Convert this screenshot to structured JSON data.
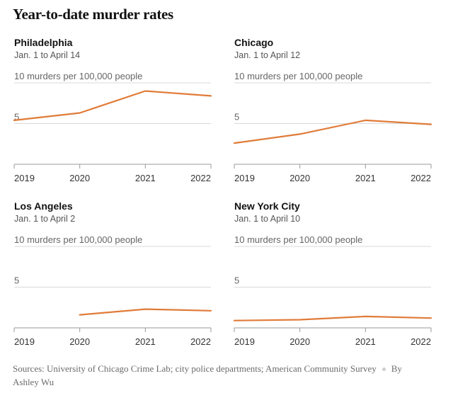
{
  "title": "Year-to-date murder rates",
  "source": "Sources: University of Chicago Crime Lab; city police departments; American Community Survey",
  "byline": "By Ashley Wu",
  "colors": {
    "line": "#e07b39",
    "grid": "#d9d9d9",
    "axis": "#999999"
  },
  "chart_data": [
    {
      "type": "line",
      "title": "Philadelphia",
      "subtitle": "Jan. 1 to April 14",
      "ylabel": "10 murders per 100,000 people",
      "gridlines": [
        10,
        5
      ],
      "gridlabels": [
        "10 murders per 100,000 people",
        "5"
      ],
      "ylim": [
        0,
        10
      ],
      "x": [
        "2019",
        "2020",
        "2021",
        "2022"
      ],
      "values": [
        5.4,
        6.3,
        9.0,
        8.4
      ]
    },
    {
      "type": "line",
      "title": "Chicago",
      "subtitle": "Jan. 1 to April 12",
      "ylabel": "10 murders per 100,000 people",
      "gridlines": [
        10,
        5
      ],
      "gridlabels": [
        "10 murders per 100,000 people",
        "5"
      ],
      "ylim": [
        0,
        10
      ],
      "x": [
        "2019",
        "2020",
        "2021",
        "2022"
      ],
      "values": [
        2.6,
        3.7,
        5.4,
        4.9
      ]
    },
    {
      "type": "line",
      "title": "Los Angeles",
      "subtitle": "Jan. 1 to April 2",
      "ylabel": "10 murders per 100,000 people",
      "gridlines": [
        10,
        5
      ],
      "gridlabels": [
        "10 murders per 100,000 people",
        "5"
      ],
      "ylim": [
        0,
        10
      ],
      "x": [
        "2019",
        "2020",
        "2021",
        "2022"
      ],
      "values": [
        null,
        1.6,
        2.3,
        2.1
      ]
    },
    {
      "type": "line",
      "title": "New York City",
      "subtitle": "Jan. 1 to April 10",
      "ylabel": "10 murders per 100,000 people",
      "gridlines": [
        10,
        5
      ],
      "gridlabels": [
        "10 murders per 100,000 people",
        "5"
      ],
      "ylim": [
        0,
        10
      ],
      "x": [
        "2019",
        "2020",
        "2021",
        "2022"
      ],
      "values": [
        0.9,
        1.0,
        1.4,
        1.2
      ]
    }
  ]
}
